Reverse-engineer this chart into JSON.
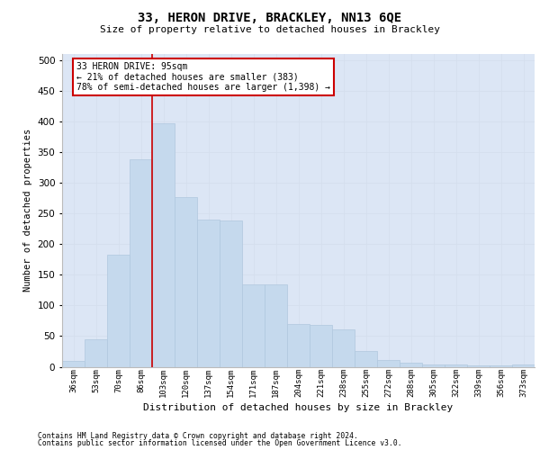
{
  "title_line1": "33, HERON DRIVE, BRACKLEY, NN13 6QE",
  "title_line2": "Size of property relative to detached houses in Brackley",
  "xlabel": "Distribution of detached houses by size in Brackley",
  "ylabel": "Number of detached properties",
  "categories": [
    "36sqm",
    "53sqm",
    "70sqm",
    "86sqm",
    "103sqm",
    "120sqm",
    "137sqm",
    "154sqm",
    "171sqm",
    "187sqm",
    "204sqm",
    "221sqm",
    "238sqm",
    "255sqm",
    "272sqm",
    "288sqm",
    "305sqm",
    "322sqm",
    "339sqm",
    "356sqm",
    "373sqm"
  ],
  "values": [
    9,
    45,
    183,
    338,
    397,
    277,
    240,
    238,
    135,
    135,
    69,
    68,
    61,
    25,
    11,
    7,
    4,
    4,
    2,
    2,
    4
  ],
  "bar_color": "#c5d9ed",
  "bar_edge_color": "#b0c8de",
  "grid_color": "#d5dfee",
  "background_color": "#dce6f5",
  "vline_color": "#cc0000",
  "annotation_line1": "33 HERON DRIVE: 95sqm",
  "annotation_line2": "← 21% of detached houses are smaller (383)",
  "annotation_line3": "78% of semi-detached houses are larger (1,398) →",
  "annotation_box_facecolor": "#ffffff",
  "annotation_box_edgecolor": "#cc0000",
  "ylim": [
    0,
    510
  ],
  "yticks": [
    0,
    50,
    100,
    150,
    200,
    250,
    300,
    350,
    400,
    450,
    500
  ],
  "footer_line1": "Contains HM Land Registry data © Crown copyright and database right 2024.",
  "footer_line2": "Contains public sector information licensed under the Open Government Licence v3.0."
}
